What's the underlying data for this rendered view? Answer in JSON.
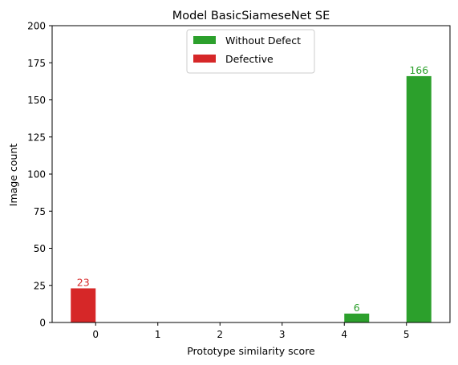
{
  "chart_data": {
    "type": "bar",
    "title": "Model BasicSiameseNet SE",
    "xlabel": "Prototype similarity score",
    "ylabel": "Image count",
    "x_ticks": [
      "0",
      "1",
      "2",
      "3",
      "4",
      "5"
    ],
    "y_ticks": [
      "0",
      "25",
      "50",
      "75",
      "100",
      "125",
      "150",
      "175",
      "200"
    ],
    "ylim": [
      0,
      200
    ],
    "xlim": [
      -0.7,
      5.7
    ],
    "grid": false,
    "legend_position": "top-center",
    "series": [
      {
        "name": "Without Defect",
        "color": "#2ca02c",
        "points": [
          {
            "x": 4,
            "value": 6,
            "label": "6"
          },
          {
            "x": 5,
            "value": 166,
            "label": "166"
          }
        ]
      },
      {
        "name": "Defective",
        "color": "#d62728",
        "points": [
          {
            "x": 0,
            "value": 23,
            "label": "23"
          }
        ]
      }
    ]
  }
}
